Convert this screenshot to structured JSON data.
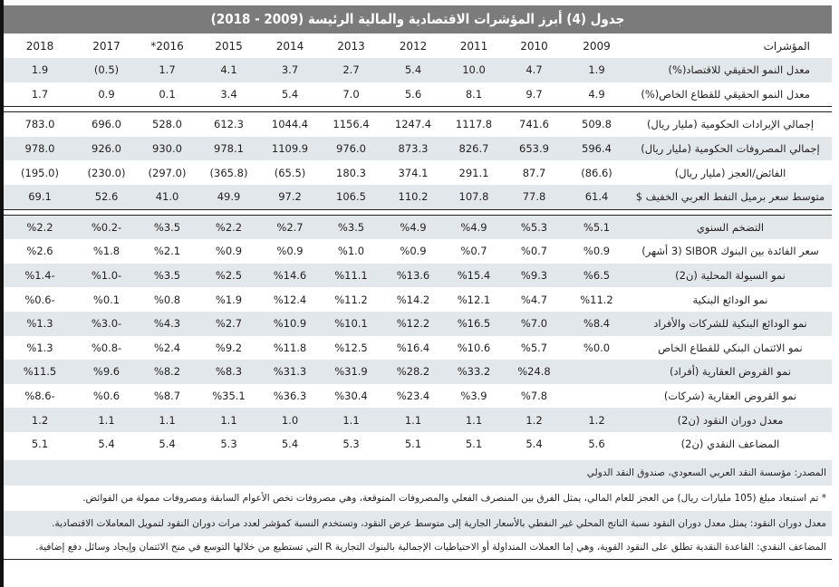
{
  "title": "جدول (4) أبرز المؤشرات الاقتصادية والمالية الرئيسة (2009 - 2018)",
  "header": {
    "indicator_label": "المؤشرات",
    "years": [
      "2009",
      "2010",
      "2011",
      "2012",
      "2013",
      "2014",
      "2015",
      "*2016",
      "2017",
      "2018"
    ]
  },
  "rows": [
    {
      "label": "معدل النمو الحقيقي للاقتصاد(%)",
      "values": [
        "1.9",
        "4.7",
        "10.0",
        "5.4",
        "2.7",
        "3.7",
        "4.1",
        "1.7",
        "(0.5)",
        "1.9"
      ]
    },
    {
      "label": "معدل النمو الحقيقي للقطاع الخاص(%)",
      "values": [
        "4.9",
        "9.7",
        "8.1",
        "5.6",
        "7.0",
        "5.4",
        "3.4",
        "0.1",
        "0.9",
        "1.7"
      ]
    },
    {
      "label": "إجمالي الإيرادات الحكومية (مليار ريال)",
      "values": [
        "509.8",
        "741.6",
        "1117.8",
        "1247.4",
        "1156.4",
        "1044.4",
        "612.3",
        "528.0",
        "696.0",
        "783.0"
      ]
    },
    {
      "label": "إجمالي المصروفات الحكومية (مليار ريال)",
      "values": [
        "596.4",
        "653.9",
        "826.7",
        "873.3",
        "976.0",
        "1109.9",
        "978.1",
        "930.0",
        "926.0",
        "978.0"
      ]
    },
    {
      "label": "الفائض/العجز (مليار ريال)",
      "values": [
        "(86.6)",
        "87.7",
        "291.1",
        "374.1",
        "180.3",
        "(65.5)",
        "(365.8)",
        "(297.0)",
        "(230.0)",
        "(195.0)"
      ]
    },
    {
      "label": "متوسط سعر برميل النفط العربي الخفيف $",
      "values": [
        "61.4",
        "77.8",
        "107.8",
        "110.2",
        "106.5",
        "97.2",
        "49.9",
        "41.0",
        "52.6",
        "69.1"
      ]
    },
    {
      "label": "التضخم السنوي",
      "values": [
        "%5.1",
        "%5.3",
        "%4.9",
        "%4.9",
        "%3.5",
        "%2.7",
        "%2.2",
        "%3.5",
        "%0.2-",
        "%2.2"
      ]
    },
    {
      "label": "سعر الفائدة بين البنوك SIBOR (3 أشهر)",
      "values": [
        "%0.9",
        "%0.7",
        "%0.7",
        "%0.9",
        "%1.0",
        "%0.9",
        "%0.9",
        "%2.1",
        "%1.8",
        "%2.6"
      ]
    },
    {
      "label": "نمو السيولة المحلية (ن2)",
      "values": [
        "%6.5",
        "%9.3",
        "%15.4",
        "%13.6",
        "%11.1",
        "%14.6",
        "%2.5",
        "%3.5",
        "%1.0-",
        "%1.4-"
      ]
    },
    {
      "label": "نمو الودائع البنكية",
      "values": [
        "%11.2",
        "%4.7",
        "%12.1",
        "%14.2",
        "%11.2",
        "%12.4",
        "%1.9",
        "%0.8",
        "%0.1",
        "%0.6-"
      ]
    },
    {
      "label": "نمو الودائع البنكية للشركات والأفراد",
      "values": [
        "%8.4",
        "%7.0",
        "%16.5",
        "%12.2",
        "%10.1",
        "%10.9",
        "%2.7",
        "%4.3",
        "%3.0-",
        "%1.3"
      ]
    },
    {
      "label": "نمو الائتمان البنكي للقطاع الخاص",
      "values": [
        "%0.0",
        "%5.7",
        "%10.6",
        "%16.4",
        "%12.5",
        "%11.8",
        "%9.2",
        "%2.4",
        "%0.8-",
        "%1.3"
      ]
    },
    {
      "label": "نمو القروض العقارية (أفراد)",
      "values": [
        "",
        "%24.8",
        "%33.2",
        "%28.2",
        "%31.9",
        "%31.3",
        "%8.3",
        "%8.2",
        "%9.6",
        "%11.5"
      ]
    },
    {
      "label": "نمو القروض العقارية (شركات)",
      "values": [
        "",
        "%7.8",
        "%3.9",
        "%23.4",
        "%30.4",
        "%36.3",
        "%35.1",
        "%8.7",
        "%0.6",
        "%8.6-"
      ]
    },
    {
      "label": "معدل دوران النقود (ن2)",
      "values": [
        "1.2",
        "1.2",
        "1.1",
        "1.1",
        "1.1",
        "1.0",
        "1.1",
        "1.1",
        "1.1",
        "1.2"
      ]
    },
    {
      "label": "المضاعف النقدي (ن2)",
      "values": [
        "5.6",
        "5.4",
        "5.1",
        "5.1",
        "5.3",
        "5.4",
        "5.3",
        "5.4",
        "5.4",
        "5.1"
      ]
    }
  ],
  "footer": {
    "source": "المصدر: مؤسسة النقد العربي السعودي، صندوق النقد الدولي",
    "note_2016": "* تم استبعاد مبلغ (105 مليارات ريال) من العجز للعام المالي، يمثل الفرق بين المنصرف الفعلي والمصروفات المتوقعة، وهي مصروفات تخص الأعوام السابقة ومصروفات ممولة من الفوائض.",
    "note_velocity": "معدل دوران النقود: يمثل معدل دوران النقود نسبة الناتج المحلي غير النفطي بالأسعار الجارية إلى متوسط عرض النقود، وتستخدم النسبة كمؤشر لعدد مرات دوران النقود لتمويل المعاملات الاقتصادية.",
    "note_multiplier": "المضاعف النقدي: القاعدة النقدية تطلق على النقود القوية، وهي إما العملات المتداولة أو الاحتياطيات الإجمالية بالبنوك التجارية R التي تستطيع من خلالها التوسع في منح الائتمان وإيجاد وسائل دفع إضافية."
  },
  "colors": {
    "title_bg": "#7b7b7c",
    "stripe_bg": "#e2e7ec",
    "text": "#231f20"
  }
}
